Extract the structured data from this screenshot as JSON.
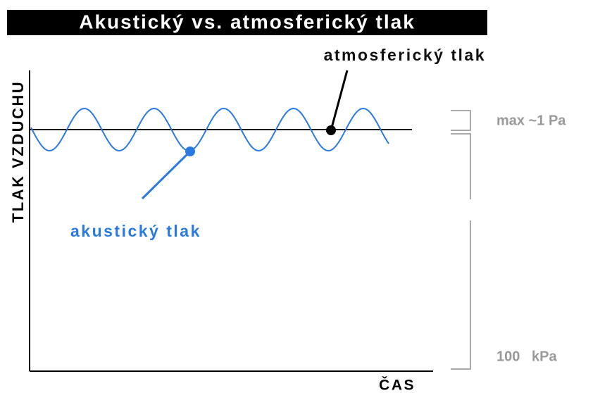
{
  "title": "Akustický vs. atmosferický tlak",
  "labels": {
    "atmospheric": "atmosferický tlak",
    "acoustic": "akustický tlak",
    "y_axis": "TLAK VZDUCHU",
    "x_axis": "ČAS",
    "max": "max ~1 Pa",
    "base": "100   kPa"
  }
}
